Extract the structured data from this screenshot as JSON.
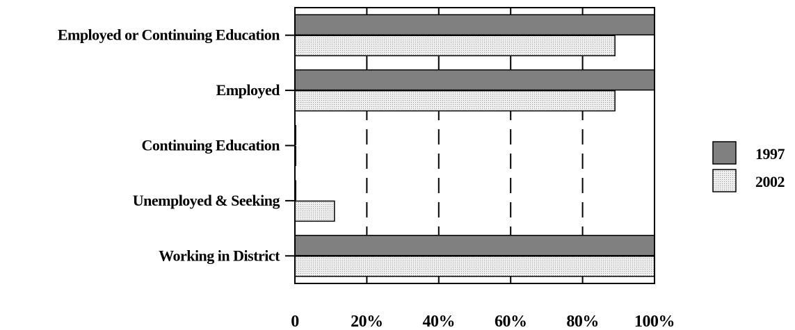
{
  "chart_data": {
    "type": "bar",
    "orientation": "horizontal",
    "categories": [
      "Employed or Continuing Education",
      "Employed",
      "Continuing Education",
      "Unemployed & Seeking",
      "Working in District"
    ],
    "series": [
      {
        "name": "1997",
        "values": [
          100,
          100,
          0,
          0,
          100
        ]
      },
      {
        "name": "2002",
        "values": [
          89,
          89,
          0,
          11,
          100
        ]
      }
    ],
    "xlim": [
      0,
      100
    ],
    "xticks": [
      "0",
      "20%",
      "40%",
      "60%",
      "80%",
      "100%"
    ],
    "grid": "vertical dashed",
    "legend_position": "right",
    "colors": {
      "1997": "#808080",
      "2002": "#e4e4e4"
    }
  }
}
